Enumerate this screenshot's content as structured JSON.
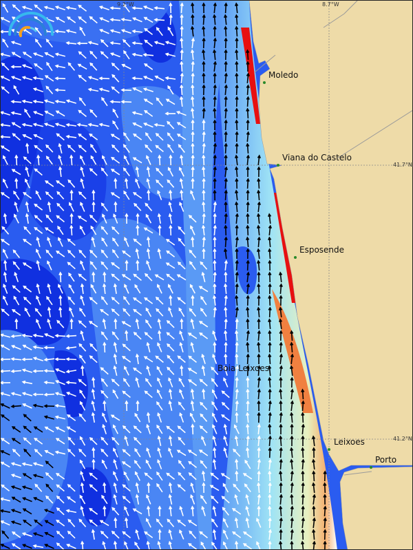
{
  "map": {
    "graticule": {
      "longitudes": [
        "9.2°W",
        "8.7°W"
      ],
      "latitudes": [
        "41.7°N",
        "41.2°N"
      ]
    },
    "places": [
      {
        "name": "Moledo"
      },
      {
        "name": "Viana do Castelo"
      },
      {
        "name": "Esposende"
      },
      {
        "name": "Boia Leixoes"
      },
      {
        "name": "Leixoes"
      },
      {
        "name": "Porto"
      }
    ],
    "colors": {
      "deep": "#1030e0",
      "mid": "#2a5cf0",
      "light": "#5a9af5",
      "shallow": "#a0e4f5",
      "land": "#eedba8",
      "high": "#f07030",
      "max": "#e81010"
    },
    "logo_icon": "wave-arcs-logo"
  }
}
